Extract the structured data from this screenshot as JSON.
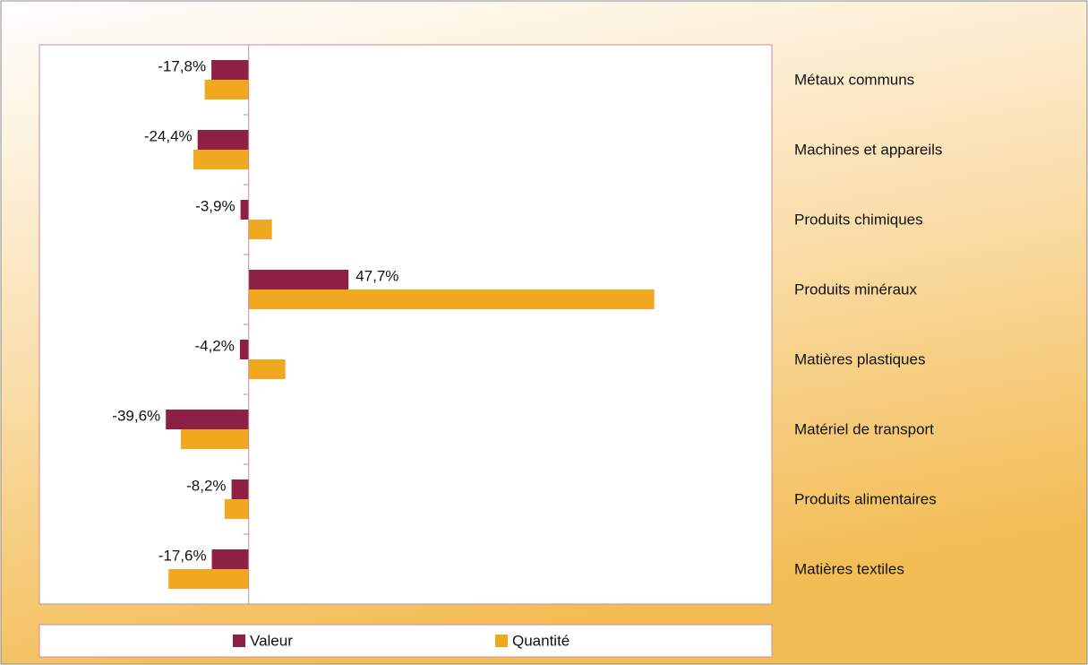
{
  "chart_data": {
    "type": "bar",
    "orientation": "horizontal",
    "categories": [
      "Métaux communs",
      "Machines et appareils",
      "Produits chimiques",
      "Produits minéraux",
      "Matières plastiques",
      "Matériel de transport",
      "Produits alimentaires",
      "Matières textiles"
    ],
    "series": [
      {
        "name": "Valeur",
        "color": "#8e1f45",
        "values": [
          -17.8,
          -24.4,
          -3.9,
          47.7,
          -4.2,
          -39.6,
          -8.2,
          -17.6
        ],
        "value_labels": [
          "-17,8%",
          "-24,4%",
          "-3,9%",
          "47,7%",
          "-4,2%",
          "-39,6%",
          "-8,2%",
          "-17,6%"
        ]
      },
      {
        "name": "Quantité",
        "color": "#f0a81e",
        "values": [
          -21,
          -26.4,
          11.1,
          193.8,
          17.5,
          -32.4,
          -11.5,
          -38.3
        ]
      }
    ],
    "xlim": [
      -100,
      250
    ],
    "legend": "bottom"
  }
}
